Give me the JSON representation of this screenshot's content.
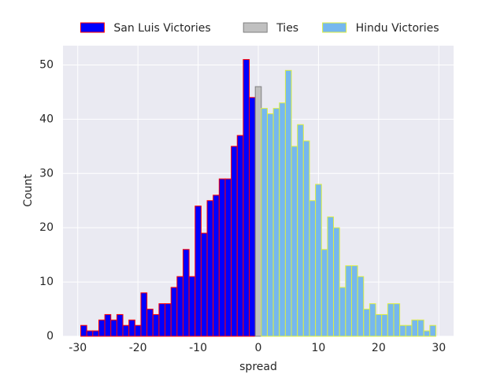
{
  "chart_data": {
    "type": "histogram",
    "xlabel": "spread",
    "ylabel": "Count",
    "xlim": [
      -32.45,
      32.45
    ],
    "xticks": [
      -30,
      -20,
      -10,
      0,
      10,
      20,
      30
    ],
    "ylim": [
      0,
      53.55
    ],
    "yticks": [
      0,
      10,
      20,
      30,
      40,
      50
    ],
    "grid": true,
    "legend": "top-center",
    "series": [
      {
        "name": "San Luis Victories",
        "color": "#0000ff",
        "edgecolor": "#ff0000",
        "bins": [
          -29.5,
          -28.5,
          -27.5,
          -26.5,
          -25.5,
          -24.5,
          -23.5,
          -22.5,
          -21.5,
          -20.5,
          -19.5,
          -18.5,
          -17.5,
          -16.5,
          -15.5,
          -14.5,
          -13.5,
          -12.5,
          -11.5,
          -10.5,
          -9.5,
          -8.5,
          -7.5,
          -6.5,
          -5.5,
          -4.5,
          -3.5,
          -2.5,
          -1.5,
          -0.5
        ],
        "values": [
          2,
          1,
          1,
          3,
          4,
          3,
          4,
          2,
          3,
          2,
          8,
          5,
          4,
          6,
          6,
          9,
          11,
          16,
          11,
          24,
          19,
          25,
          26,
          29,
          29,
          35,
          37,
          51,
          44
        ]
      },
      {
        "name": "Ties",
        "color": "#c0c0c0",
        "edgecolor": "#808080",
        "bins": [
          -0.5,
          0.5
        ],
        "values": [
          46
        ]
      },
      {
        "name": "Hindu Victories",
        "color": "#76b8ee",
        "edgecolor": "#ddee44",
        "bins": [
          0.5,
          1.5,
          2.5,
          3.5,
          4.5,
          5.5,
          6.5,
          7.5,
          8.5,
          9.5,
          10.5,
          11.5,
          12.5,
          13.5,
          14.5,
          15.5,
          16.5,
          17.5,
          18.5,
          19.5,
          20.5,
          21.5,
          22.5,
          23.5,
          24.5,
          25.5,
          26.5,
          27.5,
          28.5,
          29.5
        ],
        "values": [
          42,
          41,
          42,
          43,
          49,
          35,
          39,
          36,
          25,
          28,
          16,
          22,
          20,
          9,
          13,
          13,
          11,
          5,
          6,
          4,
          4,
          6,
          6,
          2,
          2,
          3,
          3,
          1,
          2
        ]
      }
    ]
  }
}
